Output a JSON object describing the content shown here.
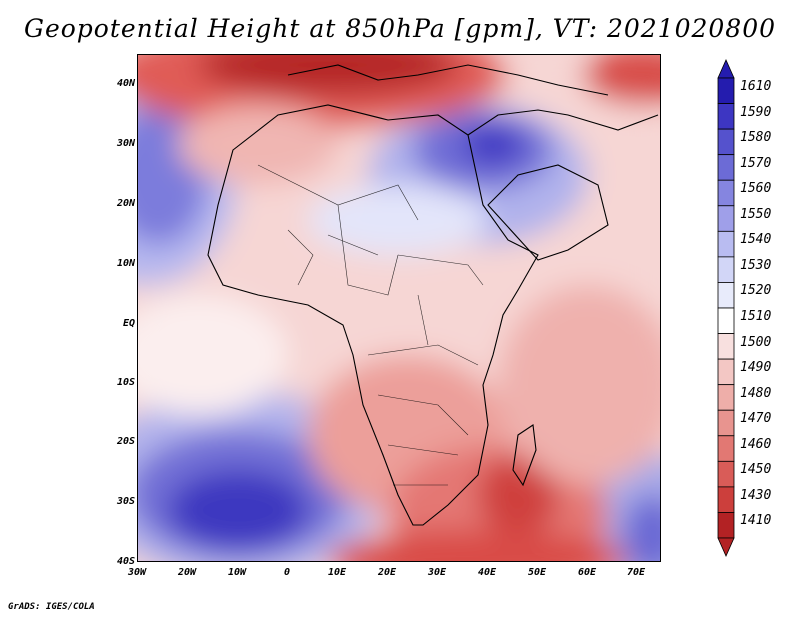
{
  "title": "Geopotential Height at 850hPa [gpm], VT: 2021020800",
  "footer": "GrADS: IGES/COLA",
  "map": {
    "y_axis_labels": [
      "40N",
      "30N",
      "20N",
      "10N",
      "EQ",
      "10S",
      "20S",
      "30S",
      "40S"
    ],
    "x_axis_labels": [
      "30W",
      "20W",
      "10W",
      "0",
      "10E",
      "20E",
      "30E",
      "40E",
      "50E",
      "60E",
      "70E"
    ]
  },
  "colorbar": {
    "labels": [
      "1610",
      "1590",
      "1580",
      "1570",
      "1560",
      "1550",
      "1540",
      "1530",
      "1520",
      "1510",
      "1500",
      "1490",
      "1480",
      "1470",
      "1460",
      "1450",
      "1430",
      "1410"
    ],
    "colors": [
      "#241cae",
      "#3d36c2",
      "#5552cd",
      "#6c6bd6",
      "#8585e0",
      "#9f9fe9",
      "#b9bcf1",
      "#d2d6f7",
      "#e8ebfb",
      "#ffffff",
      "#f8e0df",
      "#f3c7c4",
      "#eeaea9",
      "#e8948f",
      "#e27873",
      "#d95c58",
      "#cc3f3c",
      "#b32224"
    ]
  }
}
